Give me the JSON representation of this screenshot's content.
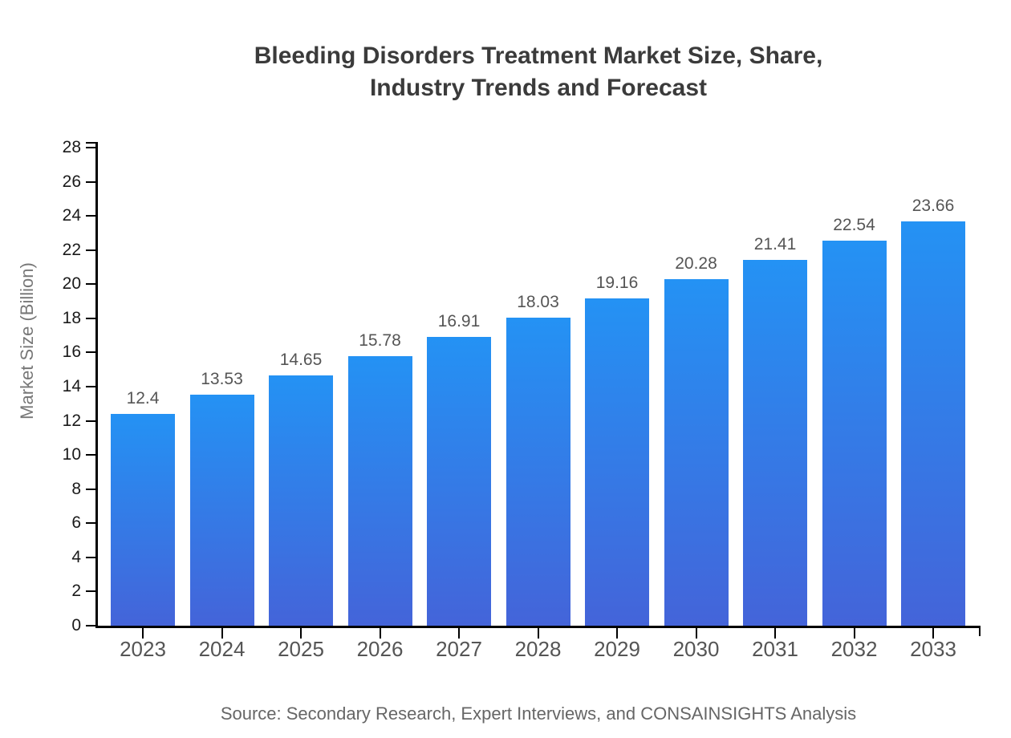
{
  "title": {
    "line1": "Bleeding Disorders Treatment Market Size, Share,",
    "line2": "Industry Trends and Forecast"
  },
  "source": "Source: Secondary Research, Expert Interviews, and CONSAINSIGHTS Analysis",
  "colors": {
    "bar_gradient_top": "#2492f4",
    "bar_gradient_bottom": "#4464d9",
    "axis": "#000000",
    "y_tick_label": "#1a1a1a",
    "category_label": "#555555",
    "value_label": "#555555",
    "axis_title": "#777777",
    "title_text": "#3b3b3b",
    "source_text": "#666666"
  },
  "chart_data": {
    "type": "bar",
    "title": "Bleeding Disorders Treatment Market Size, Share, Industry Trends and Forecast",
    "categories": [
      "2023",
      "2024",
      "2025",
      "2026",
      "2027",
      "2028",
      "2029",
      "2030",
      "2031",
      "2032",
      "2033"
    ],
    "values": [
      12.4,
      13.53,
      14.65,
      15.78,
      16.91,
      18.03,
      19.16,
      20.28,
      21.41,
      22.54,
      23.66
    ],
    "value_labels": [
      "12.4",
      "13.53",
      "14.65",
      "15.78",
      "16.91",
      "18.03",
      "19.16",
      "20.28",
      "21.41",
      "22.54",
      "23.66"
    ],
    "xlabel": "",
    "ylabel": "Market Size (Billion)",
    "ylim": [
      0,
      28
    ],
    "ytick_step": 2,
    "grid": false,
    "legend_position": "none",
    "source": "Source: Secondary Research, Expert Interviews, and CONSAINSIGHTS Analysis"
  }
}
